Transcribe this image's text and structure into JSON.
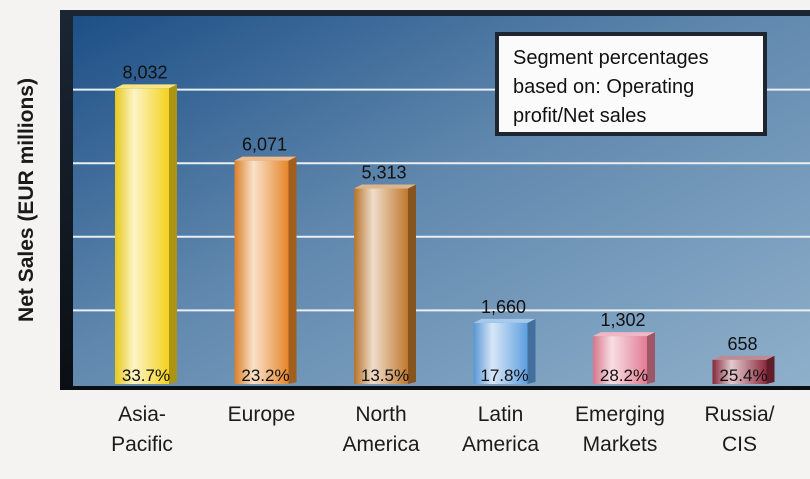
{
  "chart_data": {
    "type": "bar",
    "ylabel": "Net Sales (EUR millions)",
    "xlabel": "",
    "ylim": [
      0,
      10000
    ],
    "grid": true,
    "categories": [
      "Asia-\nPacific",
      "Europe",
      "North\nAmerica",
      "Latin\nAmerica",
      "Emerging\nMarkets",
      "Russia/\nCIS"
    ],
    "values": [
      8032,
      6071,
      5313,
      1660,
      1302,
      658
    ],
    "value_labels": [
      "8,032",
      "6,071",
      "5,313",
      "1,660",
      "1,302",
      "658"
    ],
    "segment_percentages": [
      "33.7%",
      "23.2%",
      "13.5%",
      "17.8%",
      "28.2%",
      "25.4%"
    ],
    "annotation": "Segment percentages based on: Operating profit/Net sales",
    "bar_colors": [
      "#f4d21c",
      "#e6862a",
      "#c0782d",
      "#5e9fe0",
      "#e27c92",
      "#8c2a3c"
    ]
  }
}
